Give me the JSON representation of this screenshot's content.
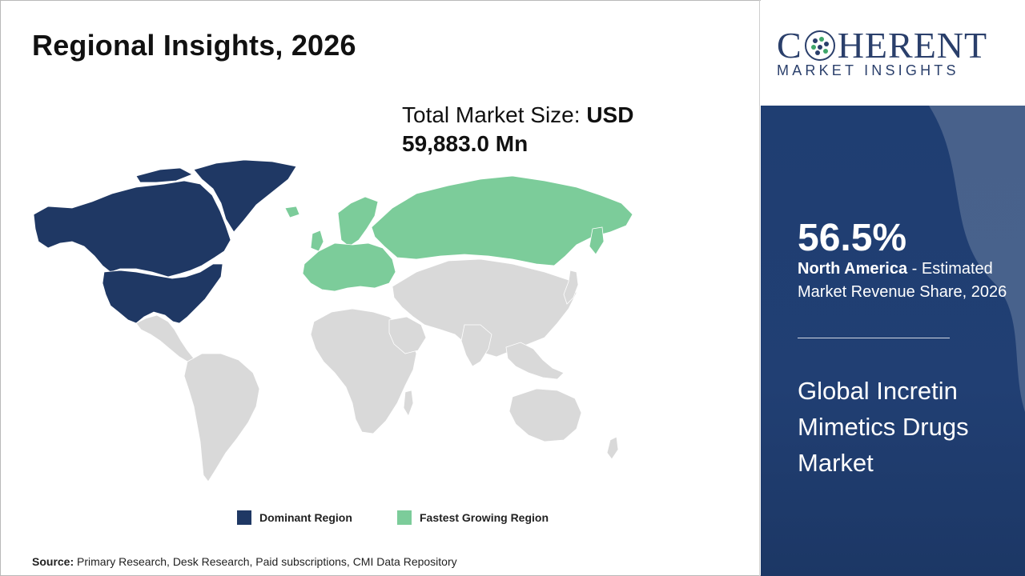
{
  "title": "Regional Insights, 2026",
  "market_size": {
    "label": "Total Market Size: ",
    "currency": "USD",
    "value": "59,883.0 Mn"
  },
  "legend": {
    "dominant": {
      "label": "Dominant Region",
      "color": "#1f3864"
    },
    "fastest": {
      "label": "Fastest Growing Region",
      "color": "#7ccc9a"
    }
  },
  "map_colors": {
    "dominant": "#1f3864",
    "fastest": "#7ccc9a",
    "other": "#d9d9d9",
    "borders": "#ffffff"
  },
  "source": {
    "label": "Source:",
    "text": " Primary Research, Desk Research, Paid subscriptions, CMI Data Repository"
  },
  "logo": {
    "brand_left": "C",
    "brand_right": "HERENT",
    "tagline": "MARKET INSIGHTS"
  },
  "panel": {
    "share": "56.5%",
    "region": "North America",
    "share_desc": " - Estimated Market Revenue Share, 2026",
    "market_name": "Global Incretin Mimetics Drugs Market"
  }
}
